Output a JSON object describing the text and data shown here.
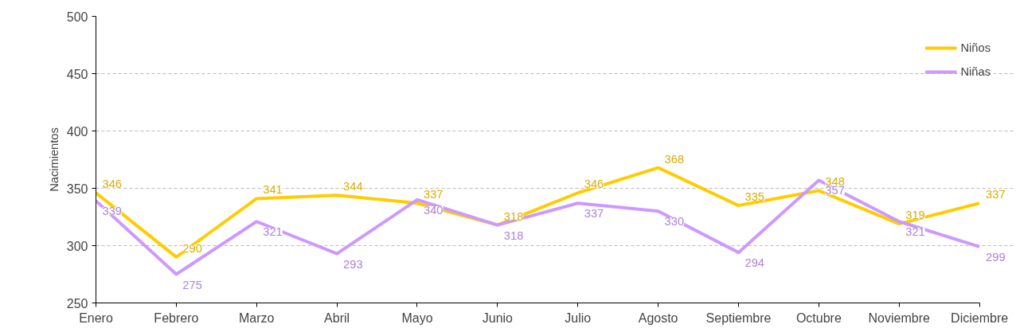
{
  "chart_data": {
    "type": "line",
    "ylabel": "Nacimientos",
    "categories": [
      "Enero",
      "Febrero",
      "Marzo",
      "Abril",
      "Mayo",
      "Junio",
      "Julio",
      "Agosto",
      "Septiembre",
      "Octubre",
      "Noviembre",
      "Diciembre"
    ],
    "series": [
      {
        "name": "Niños",
        "color": "#ffcc00",
        "values": [
          346,
          290,
          341,
          344,
          337,
          318,
          346,
          368,
          335,
          348,
          319,
          337
        ]
      },
      {
        "name": "Niñas",
        "color": "#cc99ff",
        "values": [
          339,
          275,
          321,
          293,
          340,
          318,
          337,
          330,
          294,
          357,
          321,
          299
        ]
      }
    ],
    "ylim": [
      250,
      500
    ],
    "yticks": [
      250,
      300,
      350,
      400,
      450,
      500
    ],
    "grid": "y",
    "legend": "top right",
    "data_labels": true,
    "marker": "none",
    "line_style": "solid"
  }
}
